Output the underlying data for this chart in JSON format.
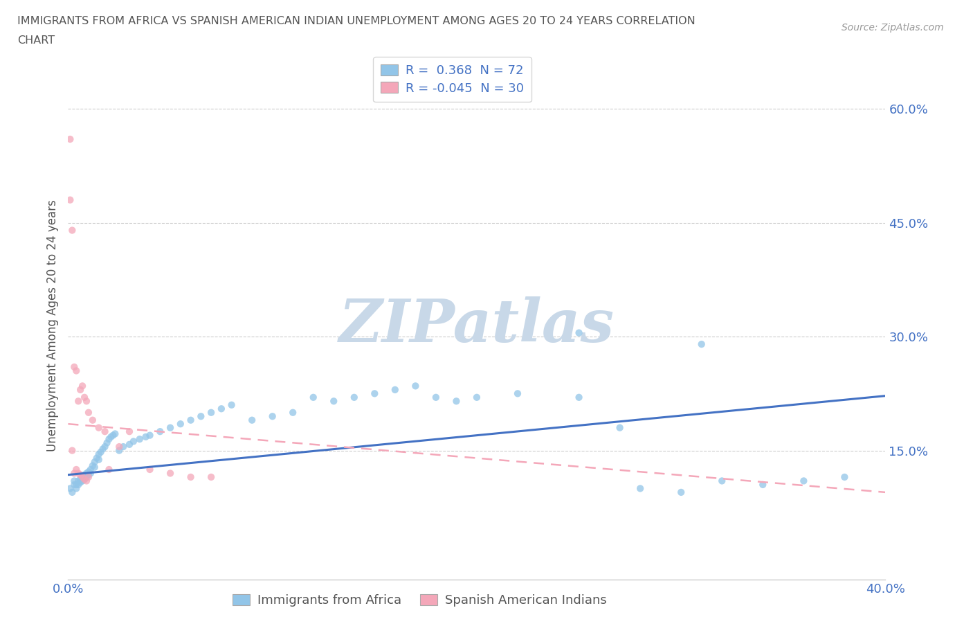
{
  "title_line1": "IMMIGRANTS FROM AFRICA VS SPANISH AMERICAN INDIAN UNEMPLOYMENT AMONG AGES 20 TO 24 YEARS CORRELATION",
  "title_line2": "CHART",
  "source": "Source: ZipAtlas.com",
  "ylabel": "Unemployment Among Ages 20 to 24 years",
  "xlim": [
    0.0,
    0.4
  ],
  "ylim": [
    -0.02,
    0.65
  ],
  "ytick_positions": [
    0.15,
    0.3,
    0.45,
    0.6
  ],
  "ytick_labels": [
    "15.0%",
    "30.0%",
    "45.0%",
    "60.0%"
  ],
  "xtick_positions": [
    0.0,
    0.4
  ],
  "xtick_labels": [
    "0.0%",
    "40.0%"
  ],
  "legend1_R": "0.368",
  "legend1_N": "72",
  "legend2_R": "-0.045",
  "legend2_N": "30",
  "bottom_legend1": "Immigrants from Africa",
  "bottom_legend2": "Spanish American Indians",
  "blue_color": "#92C5E8",
  "pink_color": "#F4A7B9",
  "blue_line_color": "#4472C4",
  "pink_line_color": "#F4A7B9",
  "watermark": "ZIPatlas",
  "watermark_color": "#C8D8E8",
  "background_color": "#FFFFFF",
  "grid_color": "#CCCCCC",
  "title_color": "#555555",
  "label_color": "#555555",
  "tick_color": "#4472C4",
  "legend_text_color": "#4472C4",
  "blue_scatter_x": [
    0.001,
    0.002,
    0.003,
    0.003,
    0.004,
    0.004,
    0.005,
    0.005,
    0.006,
    0.006,
    0.007,
    0.007,
    0.008,
    0.008,
    0.009,
    0.009,
    0.01,
    0.01,
    0.011,
    0.011,
    0.012,
    0.013,
    0.013,
    0.014,
    0.015,
    0.015,
    0.016,
    0.017,
    0.018,
    0.019,
    0.02,
    0.021,
    0.022,
    0.023,
    0.025,
    0.027,
    0.03,
    0.032,
    0.035,
    0.038,
    0.04,
    0.045,
    0.05,
    0.055,
    0.06,
    0.065,
    0.07,
    0.075,
    0.08,
    0.09,
    0.1,
    0.11,
    0.12,
    0.13,
    0.14,
    0.15,
    0.16,
    0.17,
    0.18,
    0.19,
    0.2,
    0.22,
    0.25,
    0.27,
    0.28,
    0.3,
    0.32,
    0.34,
    0.36,
    0.38,
    0.25,
    0.31
  ],
  "blue_scatter_y": [
    0.1,
    0.095,
    0.11,
    0.105,
    0.105,
    0.1,
    0.11,
    0.105,
    0.112,
    0.108,
    0.115,
    0.11,
    0.118,
    0.112,
    0.12,
    0.115,
    0.122,
    0.118,
    0.125,
    0.12,
    0.13,
    0.135,
    0.128,
    0.14,
    0.145,
    0.138,
    0.148,
    0.152,
    0.155,
    0.16,
    0.165,
    0.168,
    0.17,
    0.172,
    0.15,
    0.155,
    0.158,
    0.162,
    0.165,
    0.168,
    0.17,
    0.175,
    0.18,
    0.185,
    0.19,
    0.195,
    0.2,
    0.205,
    0.21,
    0.19,
    0.195,
    0.2,
    0.22,
    0.215,
    0.22,
    0.225,
    0.23,
    0.235,
    0.22,
    0.215,
    0.22,
    0.225,
    0.22,
    0.18,
    0.1,
    0.095,
    0.11,
    0.105,
    0.11,
    0.115,
    0.305,
    0.29
  ],
  "pink_scatter_x": [
    0.001,
    0.001,
    0.002,
    0.002,
    0.003,
    0.003,
    0.004,
    0.004,
    0.005,
    0.005,
    0.006,
    0.006,
    0.007,
    0.007,
    0.008,
    0.008,
    0.009,
    0.009,
    0.01,
    0.01,
    0.012,
    0.015,
    0.018,
    0.02,
    0.025,
    0.03,
    0.04,
    0.05,
    0.06,
    0.07
  ],
  "pink_scatter_y": [
    0.56,
    0.48,
    0.44,
    0.15,
    0.26,
    0.12,
    0.255,
    0.125,
    0.215,
    0.12,
    0.23,
    0.118,
    0.235,
    0.115,
    0.22,
    0.112,
    0.215,
    0.11,
    0.2,
    0.115,
    0.19,
    0.18,
    0.175,
    0.125,
    0.155,
    0.175,
    0.125,
    0.12,
    0.115,
    0.115
  ],
  "blue_trend_x0": 0.0,
  "blue_trend_y0": 0.118,
  "blue_trend_x1": 0.4,
  "blue_trend_y1": 0.222,
  "pink_trend_x0": 0.0,
  "pink_trend_y0": 0.185,
  "pink_trend_x1": 0.4,
  "pink_trend_y1": 0.095
}
